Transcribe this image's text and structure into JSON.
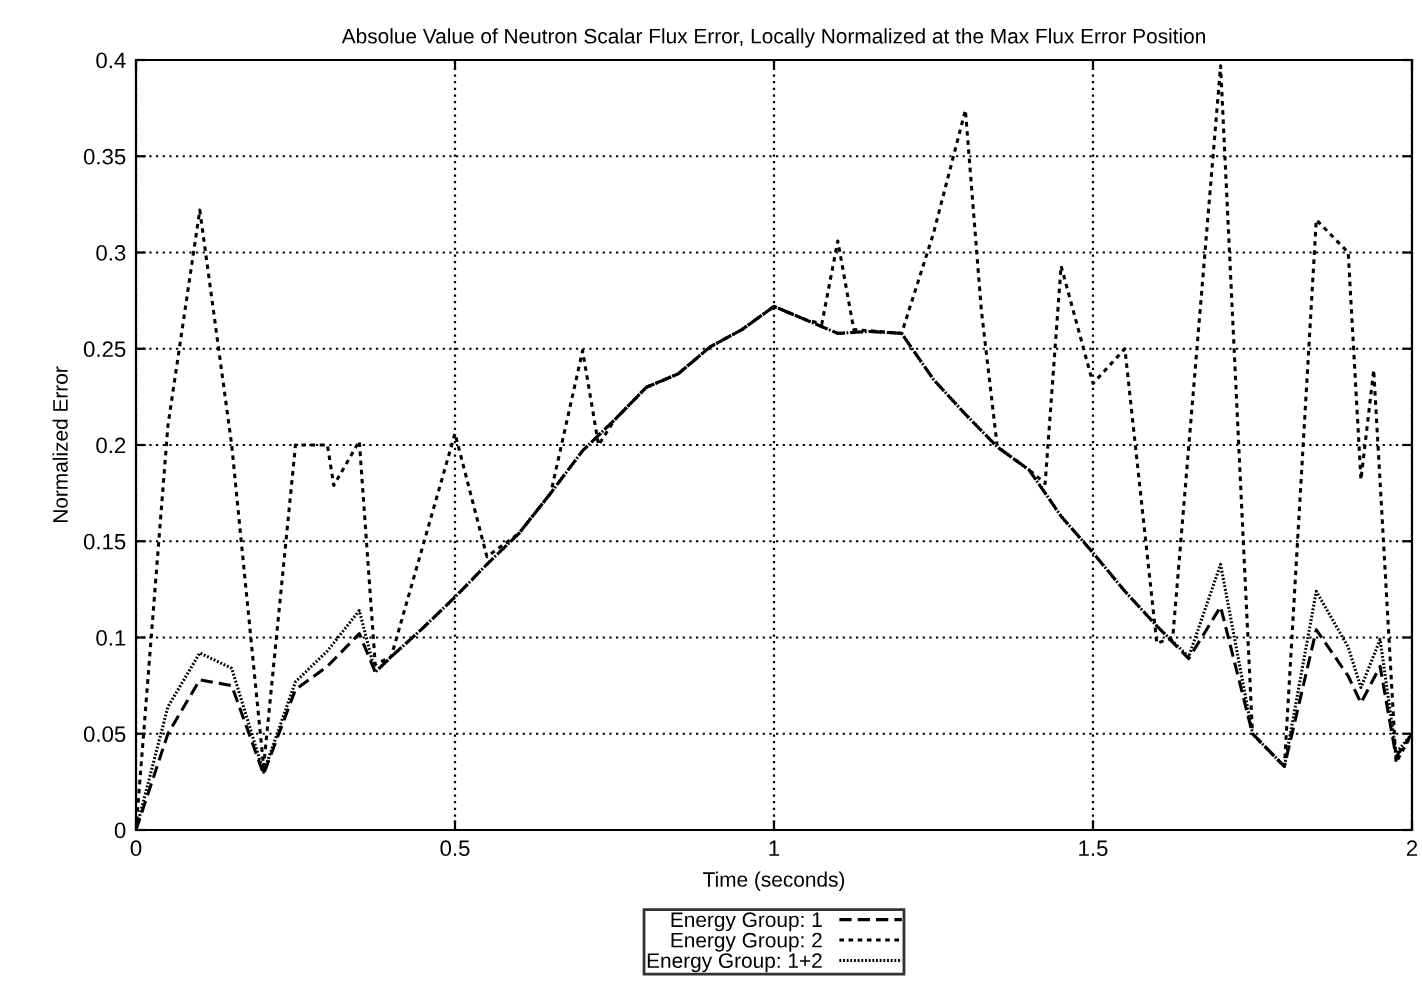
{
  "chart_data": {
    "type": "line",
    "title": "Absolue Value of Neutron Scalar Flux Error, Locally Normalized at the Max Flux Error Position",
    "xlabel": "Time (seconds)",
    "ylabel": "Normalized Error",
    "xlim": [
      0,
      2
    ],
    "ylim": [
      0,
      0.4
    ],
    "xticks": [
      0,
      0.5,
      1,
      1.5,
      2
    ],
    "yticks": [
      0,
      0.05,
      0.1,
      0.15,
      0.2,
      0.25,
      0.3,
      0.35,
      0.4
    ],
    "grid": true,
    "legend": "bottom",
    "marker": "none",
    "series": [
      {
        "name": "Energy Group: 1",
        "color": "#000000",
        "line_style": "dashed",
        "x": [
          0,
          0.05,
          0.1,
          0.15,
          0.2,
          0.25,
          0.3,
          0.35,
          0.375,
          0.4,
          0.45,
          0.5,
          0.55,
          0.6,
          0.65,
          0.7,
          0.75,
          0.8,
          0.85,
          0.9,
          0.95,
          1.0,
          1.05,
          1.1,
          1.15,
          1.2,
          1.25,
          1.3,
          1.35,
          1.4,
          1.45,
          1.5,
          1.55,
          1.6,
          1.65,
          1.7,
          1.75,
          1.8,
          1.85,
          1.9,
          1.92,
          1.95,
          1.975,
          2.0
        ],
        "values": [
          0,
          0.05,
          0.078,
          0.075,
          0.029,
          0.073,
          0.085,
          0.102,
          0.082,
          0.09,
          0.105,
          0.121,
          0.138,
          0.154,
          0.175,
          0.197,
          0.213,
          0.23,
          0.237,
          0.251,
          0.26,
          0.272,
          0.265,
          0.258,
          0.259,
          0.258,
          0.234,
          0.216,
          0.199,
          0.187,
          0.163,
          0.144,
          0.124,
          0.106,
          0.089,
          0.116,
          0.05,
          0.033,
          0.104,
          0.08,
          0.066,
          0.085,
          0.038,
          0.05
        ]
      },
      {
        "name": "Energy Group: 2",
        "color": "#000000",
        "line_style": "dotted",
        "x": [
          0,
          0.05,
          0.1,
          0.15,
          0.2,
          0.25,
          0.3,
          0.31,
          0.35,
          0.375,
          0.4,
          0.5,
          0.55,
          0.6,
          0.65,
          0.7,
          0.725,
          0.75,
          0.8,
          0.85,
          0.9,
          0.95,
          1.0,
          1.05,
          1.075,
          1.1,
          1.125,
          1.2,
          1.25,
          1.3,
          1.325,
          1.35,
          1.4,
          1.425,
          1.45,
          1.5,
          1.55,
          1.6,
          1.625,
          1.7,
          1.75,
          1.8,
          1.85,
          1.9,
          1.92,
          1.94,
          1.975,
          2.0
        ],
        "values": [
          0,
          0.21,
          0.322,
          0.2,
          0.033,
          0.2,
          0.2,
          0.179,
          0.202,
          0.086,
          0.09,
          0.206,
          0.142,
          0.154,
          0.175,
          0.249,
          0.2,
          0.213,
          0.23,
          0.237,
          0.251,
          0.26,
          0.272,
          0.265,
          0.263,
          0.306,
          0.26,
          0.258,
          0.31,
          0.374,
          0.27,
          0.199,
          0.187,
          0.18,
          0.293,
          0.232,
          0.25,
          0.097,
          0.1,
          0.397,
          0.05,
          0.033,
          0.317,
          0.3,
          0.182,
          0.239,
          0.035,
          0.05
        ]
      },
      {
        "name": "Energy Group: 1+2",
        "color": "#000000",
        "line_style": "dotted",
        "x": [
          0,
          0.05,
          0.1,
          0.15,
          0.2,
          0.25,
          0.3,
          0.35,
          0.375,
          0.4,
          0.45,
          0.5,
          0.55,
          0.6,
          0.65,
          0.7,
          0.75,
          0.8,
          0.85,
          0.9,
          0.95,
          1.0,
          1.05,
          1.1,
          1.15,
          1.2,
          1.25,
          1.3,
          1.35,
          1.4,
          1.45,
          1.5,
          1.55,
          1.6,
          1.65,
          1.7,
          1.75,
          1.8,
          1.85,
          1.9,
          1.92,
          1.95,
          1.975,
          2.0
        ],
        "values": [
          0,
          0.064,
          0.092,
          0.084,
          0.03,
          0.077,
          0.093,
          0.114,
          0.082,
          0.09,
          0.105,
          0.121,
          0.138,
          0.154,
          0.175,
          0.197,
          0.213,
          0.23,
          0.237,
          0.251,
          0.26,
          0.272,
          0.265,
          0.258,
          0.259,
          0.258,
          0.234,
          0.216,
          0.199,
          0.187,
          0.163,
          0.144,
          0.124,
          0.106,
          0.09,
          0.138,
          0.05,
          0.033,
          0.124,
          0.095,
          0.074,
          0.099,
          0.04,
          0.05
        ]
      }
    ]
  }
}
